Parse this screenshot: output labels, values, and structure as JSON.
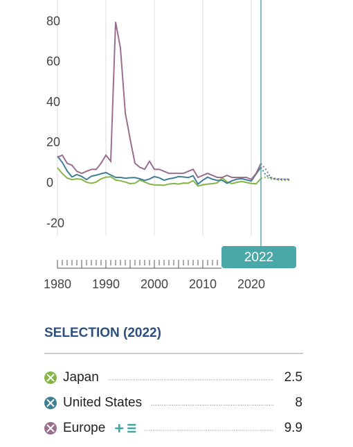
{
  "chart_data": {
    "type": "line",
    "x": [
      1980,
      1981,
      1982,
      1983,
      1984,
      1985,
      1986,
      1987,
      1988,
      1989,
      1990,
      1991,
      1992,
      1993,
      1994,
      1995,
      1996,
      1997,
      1998,
      1999,
      2000,
      2001,
      2002,
      2003,
      2004,
      2005,
      2006,
      2007,
      2008,
      2009,
      2010,
      2011,
      2012,
      2013,
      2014,
      2015,
      2016,
      2017,
      2018,
      2019,
      2020,
      2021,
      2022,
      2023,
      2024,
      2025,
      2026,
      2027,
      2028
    ],
    "series": [
      {
        "name": "Japan",
        "color": "#84b545",
        "values": [
          7.8,
          4.9,
          2.7,
          1.9,
          2.3,
          2,
          0.6,
          0.1,
          0.7,
          2.3,
          3.1,
          3.3,
          1.7,
          1.3,
          0.7,
          -0.1,
          0.1,
          1.7,
          0.7,
          -0.3,
          -0.7,
          -0.8,
          -0.9,
          -0.3,
          0,
          -0.3,
          0.2,
          0.1,
          1.4,
          -1.3,
          -0.7,
          -0.3,
          -0.1,
          0.3,
          2.8,
          0.8,
          -0.1,
          0.5,
          1,
          0.5,
          0,
          -0.2,
          2.5,
          3.2,
          2.2,
          2,
          1.6,
          1.6,
          1.6
        ]
      },
      {
        "name": "United States",
        "color": "#3f7f95",
        "values": [
          13.5,
          10.4,
          6.2,
          3.2,
          4.4,
          3.5,
          1.9,
          3.6,
          4.1,
          4.8,
          5.4,
          4.2,
          3,
          3,
          2.6,
          2.8,
          2.9,
          2.3,
          1.5,
          2.2,
          3.4,
          2.8,
          1.6,
          2.3,
          2.7,
          3.4,
          3.2,
          2.9,
          3.8,
          -0.3,
          1.6,
          3.1,
          2.1,
          1.5,
          1.6,
          0.1,
          1.3,
          2.1,
          2.4,
          1.8,
          1.2,
          4.7,
          8,
          4.1,
          2.8,
          2.1,
          2.1,
          2.1,
          2.1
        ]
      },
      {
        "name": "Europe",
        "color": "#9a6f8d",
        "values": [
          13,
          14,
          10,
          9,
          6,
          5,
          6,
          7,
          7,
          10,
          14,
          11,
          80,
          67,
          35,
          22,
          10,
          8,
          7,
          11,
          7,
          7,
          6,
          5,
          5,
          5,
          5,
          6,
          7,
          3,
          4,
          5,
          4,
          3,
          3,
          4,
          3,
          3,
          3,
          3,
          2,
          5,
          9.9,
          7,
          3,
          2.5,
          2.2,
          2.1,
          2
        ]
      }
    ],
    "xlim": [
      1980,
      2028
    ],
    "xticks": [
      1980,
      1990,
      2000,
      2010,
      2020
    ],
    "ylim": [
      -20,
      85
    ],
    "yticks": [
      -20,
      0,
      20,
      40,
      60,
      80
    ],
    "selected_year": 2022,
    "projection_start": 2022,
    "selection_title": "SELECTION (2022)"
  }
}
